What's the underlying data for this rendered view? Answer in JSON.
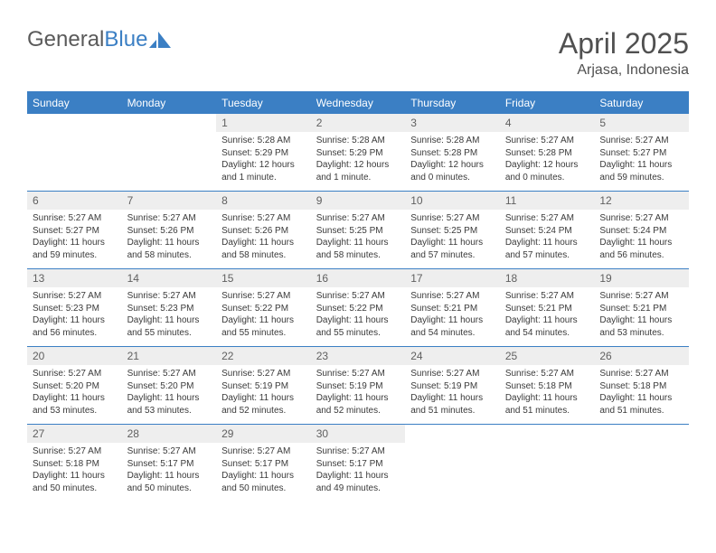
{
  "logo": {
    "word1": "General",
    "word2": "Blue"
  },
  "title": "April 2025",
  "subtitle": "Arjasa, Indonesia",
  "colors": {
    "accent": "#3b7fc4",
    "header_text": "#ffffff",
    "daynum_bg": "#eeeeee",
    "body_text": "#3a3a3a",
    "title_text": "#505050"
  },
  "day_headers": [
    "Sunday",
    "Monday",
    "Tuesday",
    "Wednesday",
    "Thursday",
    "Friday",
    "Saturday"
  ],
  "weeks": [
    [
      {
        "empty": true
      },
      {
        "empty": true
      },
      {
        "n": "1",
        "sunrise": "Sunrise: 5:28 AM",
        "sunset": "Sunset: 5:29 PM",
        "daylight": "Daylight: 12 hours and 1 minute."
      },
      {
        "n": "2",
        "sunrise": "Sunrise: 5:28 AM",
        "sunset": "Sunset: 5:29 PM",
        "daylight": "Daylight: 12 hours and 1 minute."
      },
      {
        "n": "3",
        "sunrise": "Sunrise: 5:28 AM",
        "sunset": "Sunset: 5:28 PM",
        "daylight": "Daylight: 12 hours and 0 minutes."
      },
      {
        "n": "4",
        "sunrise": "Sunrise: 5:27 AM",
        "sunset": "Sunset: 5:28 PM",
        "daylight": "Daylight: 12 hours and 0 minutes."
      },
      {
        "n": "5",
        "sunrise": "Sunrise: 5:27 AM",
        "sunset": "Sunset: 5:27 PM",
        "daylight": "Daylight: 11 hours and 59 minutes."
      }
    ],
    [
      {
        "n": "6",
        "sunrise": "Sunrise: 5:27 AM",
        "sunset": "Sunset: 5:27 PM",
        "daylight": "Daylight: 11 hours and 59 minutes."
      },
      {
        "n": "7",
        "sunrise": "Sunrise: 5:27 AM",
        "sunset": "Sunset: 5:26 PM",
        "daylight": "Daylight: 11 hours and 58 minutes."
      },
      {
        "n": "8",
        "sunrise": "Sunrise: 5:27 AM",
        "sunset": "Sunset: 5:26 PM",
        "daylight": "Daylight: 11 hours and 58 minutes."
      },
      {
        "n": "9",
        "sunrise": "Sunrise: 5:27 AM",
        "sunset": "Sunset: 5:25 PM",
        "daylight": "Daylight: 11 hours and 58 minutes."
      },
      {
        "n": "10",
        "sunrise": "Sunrise: 5:27 AM",
        "sunset": "Sunset: 5:25 PM",
        "daylight": "Daylight: 11 hours and 57 minutes."
      },
      {
        "n": "11",
        "sunrise": "Sunrise: 5:27 AM",
        "sunset": "Sunset: 5:24 PM",
        "daylight": "Daylight: 11 hours and 57 minutes."
      },
      {
        "n": "12",
        "sunrise": "Sunrise: 5:27 AM",
        "sunset": "Sunset: 5:24 PM",
        "daylight": "Daylight: 11 hours and 56 minutes."
      }
    ],
    [
      {
        "n": "13",
        "sunrise": "Sunrise: 5:27 AM",
        "sunset": "Sunset: 5:23 PM",
        "daylight": "Daylight: 11 hours and 56 minutes."
      },
      {
        "n": "14",
        "sunrise": "Sunrise: 5:27 AM",
        "sunset": "Sunset: 5:23 PM",
        "daylight": "Daylight: 11 hours and 55 minutes."
      },
      {
        "n": "15",
        "sunrise": "Sunrise: 5:27 AM",
        "sunset": "Sunset: 5:22 PM",
        "daylight": "Daylight: 11 hours and 55 minutes."
      },
      {
        "n": "16",
        "sunrise": "Sunrise: 5:27 AM",
        "sunset": "Sunset: 5:22 PM",
        "daylight": "Daylight: 11 hours and 55 minutes."
      },
      {
        "n": "17",
        "sunrise": "Sunrise: 5:27 AM",
        "sunset": "Sunset: 5:21 PM",
        "daylight": "Daylight: 11 hours and 54 minutes."
      },
      {
        "n": "18",
        "sunrise": "Sunrise: 5:27 AM",
        "sunset": "Sunset: 5:21 PM",
        "daylight": "Daylight: 11 hours and 54 minutes."
      },
      {
        "n": "19",
        "sunrise": "Sunrise: 5:27 AM",
        "sunset": "Sunset: 5:21 PM",
        "daylight": "Daylight: 11 hours and 53 minutes."
      }
    ],
    [
      {
        "n": "20",
        "sunrise": "Sunrise: 5:27 AM",
        "sunset": "Sunset: 5:20 PM",
        "daylight": "Daylight: 11 hours and 53 minutes."
      },
      {
        "n": "21",
        "sunrise": "Sunrise: 5:27 AM",
        "sunset": "Sunset: 5:20 PM",
        "daylight": "Daylight: 11 hours and 53 minutes."
      },
      {
        "n": "22",
        "sunrise": "Sunrise: 5:27 AM",
        "sunset": "Sunset: 5:19 PM",
        "daylight": "Daylight: 11 hours and 52 minutes."
      },
      {
        "n": "23",
        "sunrise": "Sunrise: 5:27 AM",
        "sunset": "Sunset: 5:19 PM",
        "daylight": "Daylight: 11 hours and 52 minutes."
      },
      {
        "n": "24",
        "sunrise": "Sunrise: 5:27 AM",
        "sunset": "Sunset: 5:19 PM",
        "daylight": "Daylight: 11 hours and 51 minutes."
      },
      {
        "n": "25",
        "sunrise": "Sunrise: 5:27 AM",
        "sunset": "Sunset: 5:18 PM",
        "daylight": "Daylight: 11 hours and 51 minutes."
      },
      {
        "n": "26",
        "sunrise": "Sunrise: 5:27 AM",
        "sunset": "Sunset: 5:18 PM",
        "daylight": "Daylight: 11 hours and 51 minutes."
      }
    ],
    [
      {
        "n": "27",
        "sunrise": "Sunrise: 5:27 AM",
        "sunset": "Sunset: 5:18 PM",
        "daylight": "Daylight: 11 hours and 50 minutes."
      },
      {
        "n": "28",
        "sunrise": "Sunrise: 5:27 AM",
        "sunset": "Sunset: 5:17 PM",
        "daylight": "Daylight: 11 hours and 50 minutes."
      },
      {
        "n": "29",
        "sunrise": "Sunrise: 5:27 AM",
        "sunset": "Sunset: 5:17 PM",
        "daylight": "Daylight: 11 hours and 50 minutes."
      },
      {
        "n": "30",
        "sunrise": "Sunrise: 5:27 AM",
        "sunset": "Sunset: 5:17 PM",
        "daylight": "Daylight: 11 hours and 49 minutes."
      },
      {
        "empty": true
      },
      {
        "empty": true
      },
      {
        "empty": true
      }
    ]
  ]
}
